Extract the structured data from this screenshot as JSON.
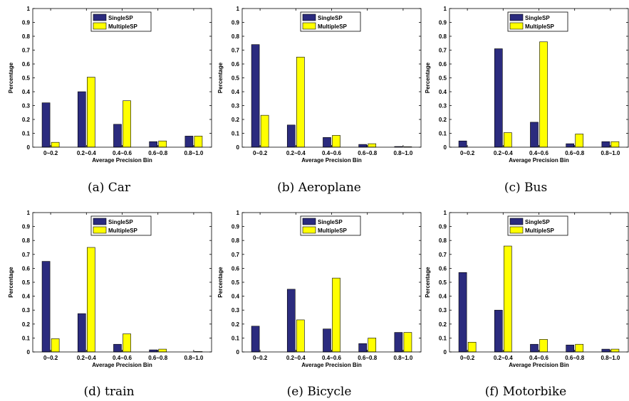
{
  "legend": [
    "SingleSP",
    "MultipleSP"
  ],
  "colors": {
    "SingleSP": "#2b2b7e",
    "MultipleSP": "#ffff00"
  },
  "chart_data": [
    {
      "type": "bar",
      "caption": "(a) Car",
      "categories": [
        "0~0.2",
        "0.2~0.4",
        "0.4~0.6",
        "0.6~0.8",
        "0.8~1.0"
      ],
      "series": [
        {
          "name": "SingleSP",
          "values": [
            0.32,
            0.4,
            0.165,
            0.04,
            0.08
          ]
        },
        {
          "name": "MultipleSP",
          "values": [
            0.035,
            0.505,
            0.335,
            0.045,
            0.08
          ]
        }
      ],
      "xlabel": "Average Precision Bin",
      "ylabel": "Percentage",
      "ylim": [
        0,
        1
      ],
      "yticks": [
        "0",
        "0.1",
        "0.2",
        "0.3",
        "0.4",
        "0.5",
        "0.6",
        "0.7",
        "0.8",
        "0.9",
        "1"
      ],
      "grid": false,
      "legend_position": "top-center"
    },
    {
      "type": "bar",
      "caption": "(b) Aeroplane",
      "categories": [
        "0~0.2",
        "0.2~0.4",
        "0.4~0.6",
        "0.6~0.8",
        "0.8~1.0"
      ],
      "series": [
        {
          "name": "SingleSP",
          "values": [
            0.74,
            0.16,
            0.07,
            0.02,
            0.005
          ]
        },
        {
          "name": "MultipleSP",
          "values": [
            0.23,
            0.65,
            0.085,
            0.025,
            0.003
          ]
        }
      ],
      "xlabel": "Average Precision Bin",
      "ylabel": "Percentage",
      "ylim": [
        0,
        1
      ],
      "yticks": [
        "0",
        "0.1",
        "0.2",
        "0.3",
        "0.4",
        "0.5",
        "0.6",
        "0.7",
        "0.8",
        "0.9",
        "1"
      ],
      "grid": false,
      "legend_position": "top-center"
    },
    {
      "type": "bar",
      "caption": "(c) Bus",
      "categories": [
        "0~0.2",
        "0.2~0.4",
        "0.4~0.6",
        "0.6~0.8",
        "0.8~1.0"
      ],
      "series": [
        {
          "name": "SingleSP",
          "values": [
            0.045,
            0.71,
            0.18,
            0.025,
            0.04
          ]
        },
        {
          "name": "MultipleSP",
          "values": [
            0.0,
            0.105,
            0.76,
            0.095,
            0.04
          ]
        }
      ],
      "xlabel": "Average Precision Bin",
      "ylabel": "Percentage",
      "ylim": [
        0,
        1
      ],
      "yticks": [
        "0",
        "0.1",
        "0.2",
        "0.3",
        "0.4",
        "0.5",
        "0.6",
        "0.7",
        "0.8",
        "0.9",
        "1"
      ],
      "grid": false,
      "legend_position": "top-center"
    },
    {
      "type": "bar",
      "caption": "(d) train",
      "categories": [
        "0~0.2",
        "0.2~0.4",
        "0.4~0.6",
        "0.6~0.8",
        "0.8~1.0"
      ],
      "series": [
        {
          "name": "SingleSP",
          "values": [
            0.65,
            0.275,
            0.055,
            0.015,
            0.0
          ]
        },
        {
          "name": "MultipleSP",
          "values": [
            0.095,
            0.75,
            0.13,
            0.02,
            0.003
          ]
        }
      ],
      "xlabel": "Average Precision Bin",
      "ylabel": "Percentage",
      "ylim": [
        0,
        1
      ],
      "yticks": [
        "0",
        "0.1",
        "0.2",
        "0.3",
        "0.4",
        "0.5",
        "0.6",
        "0.7",
        "0.8",
        "0.9",
        "1"
      ],
      "grid": false,
      "legend_position": "top-center"
    },
    {
      "type": "bar",
      "caption": "(e) Bicycle",
      "categories": [
        "0~0.2",
        "0.2~0.4",
        "0.4~0.6",
        "0.6~0.8",
        "0.8~1.0"
      ],
      "series": [
        {
          "name": "SingleSP",
          "values": [
            0.185,
            0.45,
            0.165,
            0.06,
            0.14
          ]
        },
        {
          "name": "MultipleSP",
          "values": [
            0.0,
            0.23,
            0.53,
            0.1,
            0.14
          ]
        }
      ],
      "xlabel": "Average Precision Bin",
      "ylabel": "Percentage",
      "ylim": [
        0,
        1
      ],
      "yticks": [
        "0",
        "0.1",
        "0.2",
        "0.3",
        "0.4",
        "0.5",
        "0.6",
        "0.7",
        "0.8",
        "0.9",
        "1"
      ],
      "grid": false,
      "legend_position": "top-center"
    },
    {
      "type": "bar",
      "caption": "(f) Motorbike",
      "categories": [
        "0~0.2",
        "0.2~0.4",
        "0.4~0.6",
        "0.6~0.8",
        "0.8~1.0"
      ],
      "series": [
        {
          "name": "SingleSP",
          "values": [
            0.57,
            0.3,
            0.055,
            0.05,
            0.02
          ]
        },
        {
          "name": "MultipleSP",
          "values": [
            0.07,
            0.76,
            0.09,
            0.055,
            0.02
          ]
        }
      ],
      "xlabel": "Average Precision Bin",
      "ylabel": "Percentage",
      "ylim": [
        0,
        1
      ],
      "yticks": [
        "0",
        "0.1",
        "0.2",
        "0.3",
        "0.4",
        "0.5",
        "0.6",
        "0.7",
        "0.8",
        "0.9",
        "1"
      ],
      "grid": false,
      "legend_position": "top-center"
    }
  ]
}
